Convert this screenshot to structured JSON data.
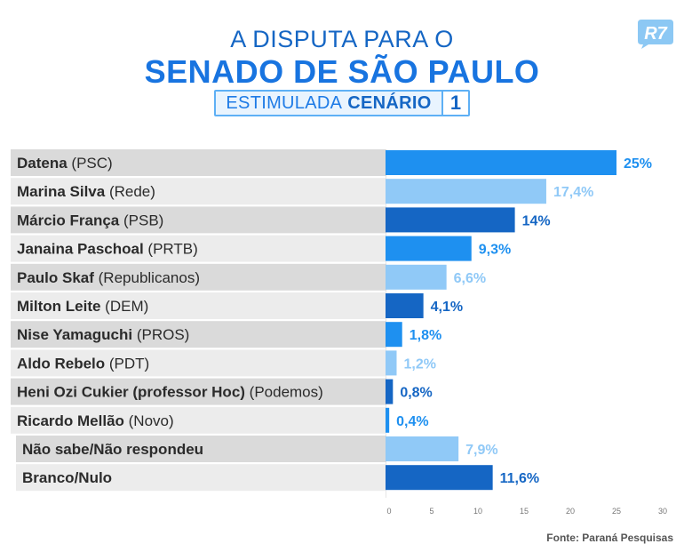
{
  "header": {
    "title_line1": "A DISPUTA PARA O",
    "title_line2": "SENADO DE SÃO PAULO",
    "subtitle_light": "ESTIMULADA",
    "subtitle_bold": "CENÁRIO",
    "subtitle_number": "1",
    "logo_text": "R7"
  },
  "source": "Fonte: Paraná Pesquisas",
  "colors": {
    "dark_blue": "#1566c4",
    "mid_blue": "#1e90f0",
    "light_blue": "#90c9f7",
    "row_dark": "#dadada",
    "row_light": "#ececec"
  },
  "chart_data": {
    "type": "bar",
    "orientation": "horizontal",
    "categories": [
      {
        "name": "Datena",
        "party": "(PSC)"
      },
      {
        "name": "Marina Silva",
        "party": "(Rede)"
      },
      {
        "name": "Márcio França",
        "party": "(PSB)"
      },
      {
        "name": "Janaina Paschoal",
        "party": "(PRTB)"
      },
      {
        "name": "Paulo Skaf",
        "party": "(Republicanos)"
      },
      {
        "name": "Milton Leite",
        "party": "(DEM)"
      },
      {
        "name": "Nise Yamaguchi",
        "party": "(PROS)"
      },
      {
        "name": "Aldo Rebelo",
        "party": "(PDT)"
      },
      {
        "name": "Heni Ozi Cukier (professor Hoc)",
        "party": "(Podemos)"
      },
      {
        "name": "Ricardo Mellão",
        "party": "(Novo)"
      },
      {
        "name": "Não sabe/Não respondeu",
        "party": ""
      },
      {
        "name": "Branco/Nulo",
        "party": ""
      }
    ],
    "values": [
      25,
      17.4,
      14,
      9.3,
      6.6,
      4.1,
      1.8,
      1.2,
      0.8,
      0.4,
      7.9,
      11.6
    ],
    "value_labels": [
      "25%",
      "17,4%",
      "14%",
      "9,3%",
      "6,6%",
      "4,1%",
      "1,8%",
      "1,2%",
      "0,8%",
      "0,4%",
      "7,9%",
      "11,6%"
    ],
    "bar_colors": [
      "mid",
      "light",
      "dark",
      "mid",
      "light",
      "dark",
      "mid",
      "light",
      "dark",
      "mid",
      "light",
      "dark"
    ],
    "xlim": [
      0,
      30
    ],
    "xticks": [
      0,
      5,
      10,
      15,
      20,
      25,
      30
    ],
    "grid": false
  }
}
